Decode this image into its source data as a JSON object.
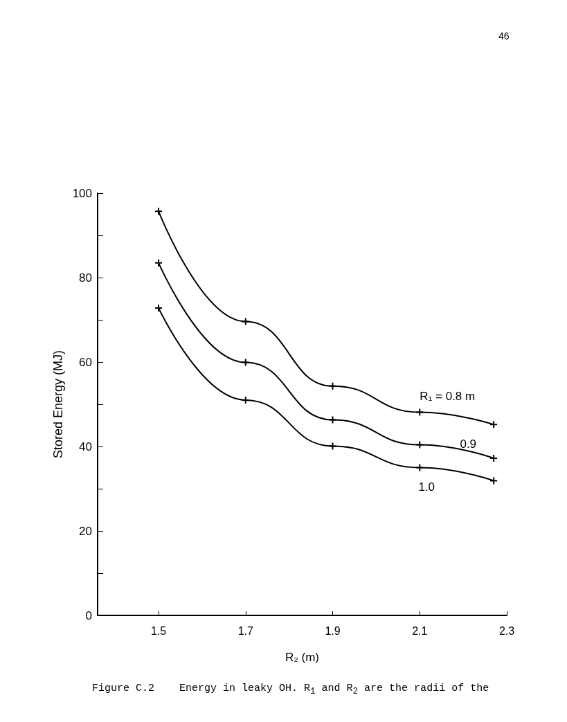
{
  "chart_data": {
    "type": "line",
    "xlabel": "R₂ (m)",
    "ylabel": "Stored Energy (MJ)",
    "x": [
      1.5,
      1.7,
      1.9,
      2.1,
      2.27
    ],
    "series": [
      {
        "name": "R₁ = 0.8 m",
        "color": "#000000",
        "values": [
          95.7,
          69.6,
          54.3,
          48.1,
          45.2
        ]
      },
      {
        "name": "0.9",
        "color": "#000000",
        "values": [
          83.5,
          59.9,
          46.3,
          40.4,
          37.2
        ]
      },
      {
        "name": "1.0",
        "color": "#000000",
        "values": [
          72.8,
          51.0,
          40.1,
          35.0,
          31.9
        ]
      }
    ],
    "xlim": [
      1.36,
      2.3
    ],
    "xticks": [
      1.5,
      1.7,
      1.9,
      2.1,
      2.3
    ],
    "ylim": [
      0,
      100
    ],
    "yticks": [
      0,
      {
        "value": 10,
        "label": null
      },
      20,
      {
        "value": 30,
        "label": null
      },
      40,
      {
        "value": 50,
        "label": null
      },
      60,
      {
        "value": 70,
        "label": null
      },
      80,
      {
        "value": 90,
        "label": null
      },
      100
    ],
    "grid": false,
    "legend": false,
    "marker": "cross",
    "line_style": "solid",
    "annotations": [
      "46",
      "Figure C.2    Energy in leaky OH. R$_{1}$ and R$_{2}$ are the radii of the"
    ]
  }
}
